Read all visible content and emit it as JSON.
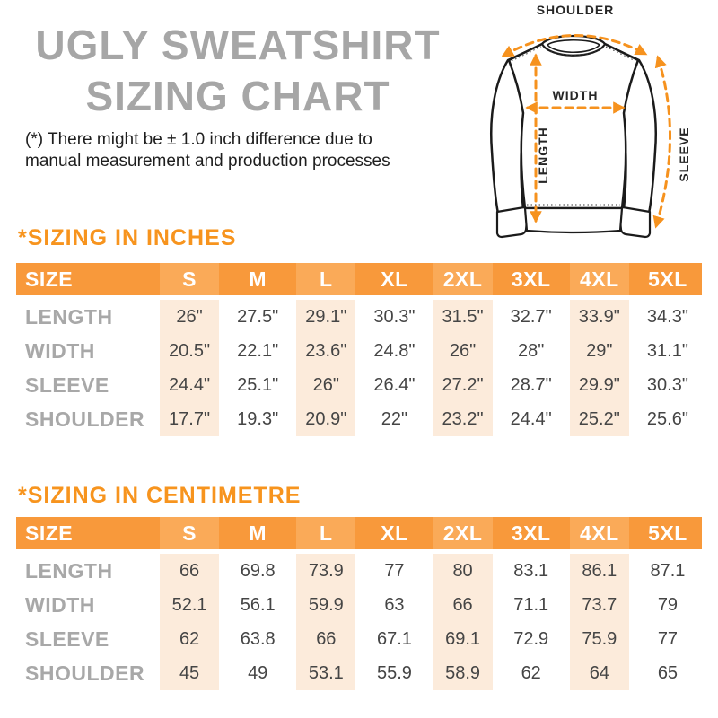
{
  "header": {
    "title_line1": "UGLY SWEATSHIRT",
    "title_line2": "SIZING CHART",
    "disclaimer_line1": "(*) There might be ± 1.0 inch difference due to",
    "disclaimer_line2": "manual measurement and production processes"
  },
  "diagram": {
    "labels": {
      "shoulder": "SHOULDER",
      "width": "WIDTH",
      "length": "LENGTH",
      "sleeve": "SLEEVE"
    },
    "arrow_color": "#F6921E",
    "outline_color": "#1b1b1b"
  },
  "colors": {
    "accent_orange": "#F7941E",
    "table_header_bg": "#F8993B",
    "table_header_highlight": "#FAAA58",
    "column_highlight": "#FCEBDB",
    "title_gray": "#a6a6a6",
    "row_label_gray": "#a8a8a8",
    "value_text": "#454545"
  },
  "tables": [
    {
      "heading": "*SIZING IN INCHES",
      "size_header": "SIZE",
      "columns": [
        "S",
        "M",
        "L",
        "XL",
        "2XL",
        "3XL",
        "4XL",
        "5XL"
      ],
      "rows": [
        {
          "label": "LENGTH",
          "values": [
            "26\"",
            "27.5\"",
            "29.1\"",
            "30.3\"",
            "31.5\"",
            "32.7\"",
            "33.9\"",
            "34.3\""
          ]
        },
        {
          "label": "WIDTH",
          "values": [
            "20.5\"",
            "22.1\"",
            "23.6\"",
            "24.8\"",
            "26\"",
            "28\"",
            "29\"",
            "31.1\""
          ]
        },
        {
          "label": "SLEEVE",
          "values": [
            "24.4\"",
            "25.1\"",
            "26\"",
            "26.4\"",
            "27.2\"",
            "28.7\"",
            "29.9\"",
            "30.3\""
          ]
        },
        {
          "label": "SHOULDER",
          "values": [
            "17.7\"",
            "19.3\"",
            "20.9\"",
            "22\"",
            "23.2\"",
            "24.4\"",
            "25.2\"",
            "25.6\""
          ]
        }
      ]
    },
    {
      "heading": "*SIZING IN CENTIMETRE",
      "size_header": "SIZE",
      "columns": [
        "S",
        "M",
        "L",
        "XL",
        "2XL",
        "3XL",
        "4XL",
        "5XL"
      ],
      "rows": [
        {
          "label": "LENGTH",
          "values": [
            "66",
            "69.8",
            "73.9",
            "77",
            "80",
            "83.1",
            "86.1",
            "87.1"
          ]
        },
        {
          "label": "WIDTH",
          "values": [
            "52.1",
            "56.1",
            "59.9",
            "63",
            "66",
            "71.1",
            "73.7",
            "79"
          ]
        },
        {
          "label": "SLEEVE",
          "values": [
            "62",
            "63.8",
            "66",
            "67.1",
            "69.1",
            "72.9",
            "75.9",
            "77"
          ]
        },
        {
          "label": "SHOULDER",
          "values": [
            "45",
            "49",
            "53.1",
            "55.9",
            "58.9",
            "62",
            "64",
            "65"
          ]
        }
      ]
    }
  ]
}
